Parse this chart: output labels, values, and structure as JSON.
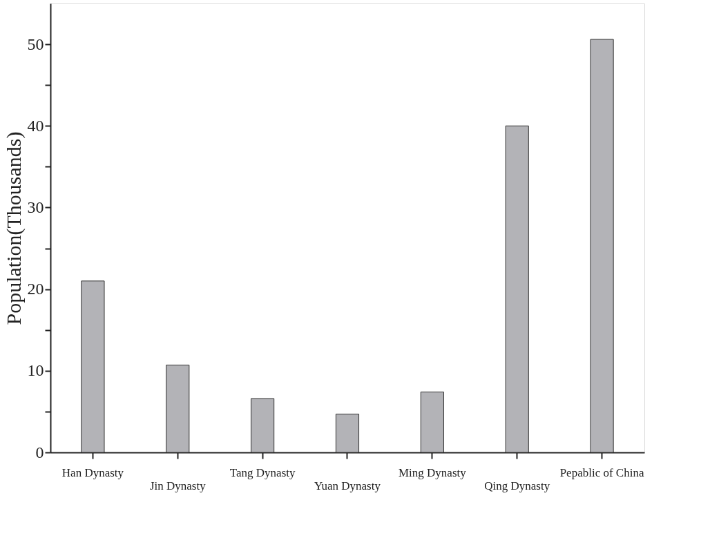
{
  "chart_data": {
    "type": "bar",
    "ylabel": "Population(Thousands)",
    "categories": [
      "Han Dynasty",
      "Jin Dynasty",
      "Tang Dynasty",
      "Yuan Dynasty",
      "Ming Dynasty",
      "Qing Dynasty",
      "Pepablic of China"
    ],
    "values": [
      21,
      10.7,
      6.6,
      4.7,
      7.4,
      40,
      50.6
    ],
    "color": "#b3b3b7",
    "ylim": [
      0,
      55
    ],
    "yticks": [
      0,
      {
        "value": 5,
        "label": null
      },
      10,
      {
        "value": 15,
        "label": null
      },
      20,
      {
        "value": 25,
        "label": null
      },
      30,
      {
        "value": 35,
        "label": null
      },
      40,
      {
        "value": 45,
        "label": null
      },
      50
    ],
    "grid": false
  }
}
